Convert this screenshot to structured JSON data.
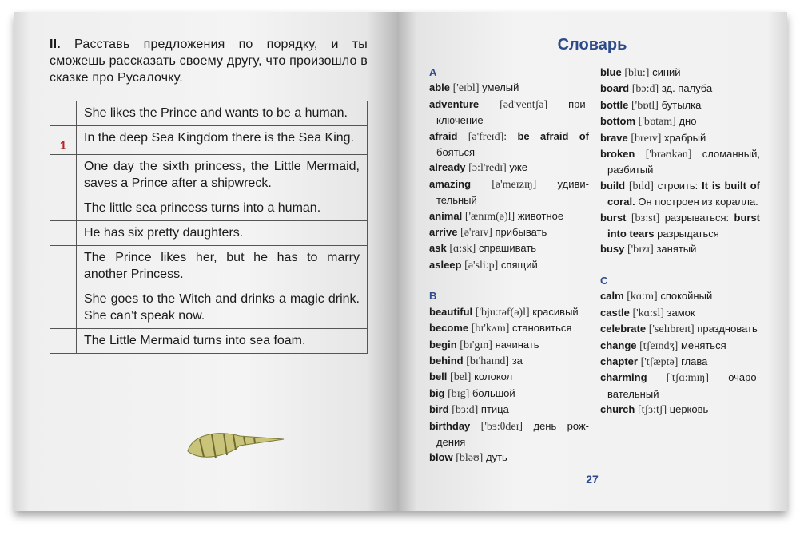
{
  "left": {
    "task_number": "II.",
    "task_text": "Расставь предложения по порядку, и ты сможешь рассказать своему другу, что произошло в сказке про Русалочку.",
    "rows": [
      {
        "num": "",
        "text": "She likes the Prince and wants to be a human."
      },
      {
        "num": "1",
        "text": "In the deep Sea Kingdom there is the Sea King."
      },
      {
        "num": "",
        "text": "One day the sixth princess, the Little Mermaid, saves a Prince after a ship­wreck."
      },
      {
        "num": "",
        "text": "The little sea princess turns into a hu­man."
      },
      {
        "num": "",
        "text": "He has six pretty daughters."
      },
      {
        "num": "",
        "text": "The Prince likes her, but he has to marry another Princess."
      },
      {
        "num": "",
        "text": "She goes to the Witch and drinks a magic drink. She can’t speak now."
      },
      {
        "num": "",
        "text": "The Little Mermaid turns into sea foam."
      }
    ],
    "image": "seashell-illustration"
  },
  "right": {
    "title": "Словарь",
    "page_number": "27",
    "col1": [
      {
        "letter": "A"
      },
      {
        "seg": [
          [
            "w",
            "able"
          ],
          [
            "p",
            "['eɪbl]"
          ],
          [
            "n",
            "умелый"
          ]
        ]
      },
      {
        "seg": [
          [
            "w",
            "adventure"
          ],
          [
            "p",
            "[əd'ventʃə]"
          ],
          [
            "n",
            "при­ключение"
          ]
        ]
      },
      {
        "seg": [
          [
            "w",
            "afraid"
          ],
          [
            "p",
            "[ə'freɪd]:"
          ],
          [
            "w",
            "be afraid of"
          ],
          [
            "n",
            "бояться"
          ]
        ]
      },
      {
        "seg": [
          [
            "w",
            "already"
          ],
          [
            "p",
            "[ɔ:l'redɪ]"
          ],
          [
            "n",
            "уже"
          ]
        ]
      },
      {
        "seg": [
          [
            "w",
            "amazing"
          ],
          [
            "p",
            "[ə'meɪzɪŋ]"
          ],
          [
            "n",
            "удиви­тельный"
          ]
        ]
      },
      {
        "seg": [
          [
            "w",
            "animal"
          ],
          [
            "p",
            "['ænɪm(ə)l]"
          ],
          [
            "n",
            "животное"
          ]
        ]
      },
      {
        "seg": [
          [
            "w",
            "arrive"
          ],
          [
            "p",
            "[ə'raɪv]"
          ],
          [
            "n",
            "прибывать"
          ]
        ]
      },
      {
        "seg": [
          [
            "w",
            "ask"
          ],
          [
            "p",
            "[ɑ:sk]"
          ],
          [
            "n",
            "спрашивать"
          ]
        ]
      },
      {
        "seg": [
          [
            "w",
            "asleep"
          ],
          [
            "p",
            "[ə'sli:p]"
          ],
          [
            "n",
            "спящий"
          ]
        ]
      },
      {
        "gap": true
      },
      {
        "letter": "B"
      },
      {
        "seg": [
          [
            "w",
            "beautiful"
          ],
          [
            "p",
            "['bju:təf(ə)l]"
          ],
          [
            "n",
            "кра­сивый"
          ]
        ]
      },
      {
        "seg": [
          [
            "w",
            "become"
          ],
          [
            "p",
            "[bɪ'kʌm]"
          ],
          [
            "n",
            "становиться"
          ]
        ]
      },
      {
        "seg": [
          [
            "w",
            "begin"
          ],
          [
            "p",
            "[bɪ'gɪn]"
          ],
          [
            "n",
            "начинать"
          ]
        ]
      },
      {
        "seg": [
          [
            "w",
            "behind"
          ],
          [
            "p",
            "[bɪ'haɪnd]"
          ],
          [
            "n",
            "за"
          ]
        ]
      },
      {
        "seg": [
          [
            "w",
            "bell"
          ],
          [
            "p",
            "[bel]"
          ],
          [
            "n",
            "колокол"
          ]
        ]
      },
      {
        "seg": [
          [
            "w",
            "big"
          ],
          [
            "p",
            "[bɪg]"
          ],
          [
            "n",
            "большой"
          ]
        ]
      },
      {
        "seg": [
          [
            "w",
            "bird"
          ],
          [
            "p",
            "[bɜ:d]"
          ],
          [
            "n",
            "птица"
          ]
        ]
      },
      {
        "seg": [
          [
            "w",
            "birthday"
          ],
          [
            "p",
            "['bɜ:θdeɪ]"
          ],
          [
            "n",
            "день рож­дения"
          ]
        ]
      },
      {
        "seg": [
          [
            "w",
            "blow"
          ],
          [
            "p",
            "[bləʊ]"
          ],
          [
            "n",
            "дуть"
          ]
        ]
      }
    ],
    "col2": [
      {
        "seg": [
          [
            "w",
            "blue"
          ],
          [
            "p",
            "[blu:]"
          ],
          [
            "n",
            "синий"
          ]
        ]
      },
      {
        "seg": [
          [
            "w",
            "board"
          ],
          [
            "p",
            "[bɔ:d]"
          ],
          [
            "n",
            "зд. палуба"
          ]
        ]
      },
      {
        "seg": [
          [
            "w",
            "bottle"
          ],
          [
            "p",
            "['bɒtl]"
          ],
          [
            "n",
            "бутылка"
          ]
        ]
      },
      {
        "seg": [
          [
            "w",
            "bottom"
          ],
          [
            "p",
            "['bɒtəm]"
          ],
          [
            "n",
            "дно"
          ]
        ]
      },
      {
        "seg": [
          [
            "w",
            "brave"
          ],
          [
            "p",
            "[breɪv]"
          ],
          [
            "n",
            "храбрый"
          ]
        ]
      },
      {
        "seg": [
          [
            "w",
            "broken"
          ],
          [
            "p",
            "['brəʊkən]"
          ],
          [
            "n",
            "сломан­ный, разбитый"
          ]
        ]
      },
      {
        "seg": [
          [
            "w",
            "build"
          ],
          [
            "p",
            "[bɪld]"
          ],
          [
            "n",
            "строить:"
          ],
          [
            "w",
            "It is built of coral."
          ],
          [
            "n",
            "Он по­строен из коралла."
          ]
        ]
      },
      {
        "seg": [
          [
            "w",
            "burst"
          ],
          [
            "p",
            "[bɜ:st]"
          ],
          [
            "n",
            "разрываться:"
          ],
          [
            "w",
            "burst into tears"
          ],
          [
            "n",
            "разры­даться"
          ]
        ]
      },
      {
        "seg": [
          [
            "w",
            "busy"
          ],
          [
            "p",
            "['bɪzɪ]"
          ],
          [
            "n",
            "занятый"
          ]
        ]
      },
      {
        "gap": true
      },
      {
        "letter": "C"
      },
      {
        "seg": [
          [
            "w",
            "calm"
          ],
          [
            "p",
            "[kɑ:m]"
          ],
          [
            "n",
            "спокойный"
          ]
        ]
      },
      {
        "seg": [
          [
            "w",
            "castle"
          ],
          [
            "p",
            "['kɑ:sl]"
          ],
          [
            "n",
            "замок"
          ]
        ]
      },
      {
        "seg": [
          [
            "w",
            "celebrate"
          ],
          [
            "p",
            "['selɪbreɪt]"
          ],
          [
            "n",
            "празд­новать"
          ]
        ]
      },
      {
        "seg": [
          [
            "w",
            "change"
          ],
          [
            "p",
            "[tʃeɪndʒ]"
          ],
          [
            "n",
            "менять­ся"
          ]
        ]
      },
      {
        "seg": [
          [
            "w",
            "chapter"
          ],
          [
            "p",
            "['tʃæptə]"
          ],
          [
            "n",
            "глава"
          ]
        ]
      },
      {
        "seg": [
          [
            "w",
            "charming"
          ],
          [
            "p",
            "['tʃɑ:mɪŋ]"
          ],
          [
            "n",
            "очаро­вательный"
          ]
        ]
      },
      {
        "seg": [
          [
            "w",
            "church"
          ],
          [
            "p",
            "[tʃɜ:tʃ]"
          ],
          [
            "n",
            "церковь"
          ]
        ]
      }
    ],
    "colors": {
      "accent": "#2d4a8a",
      "number": "#b22222"
    }
  }
}
